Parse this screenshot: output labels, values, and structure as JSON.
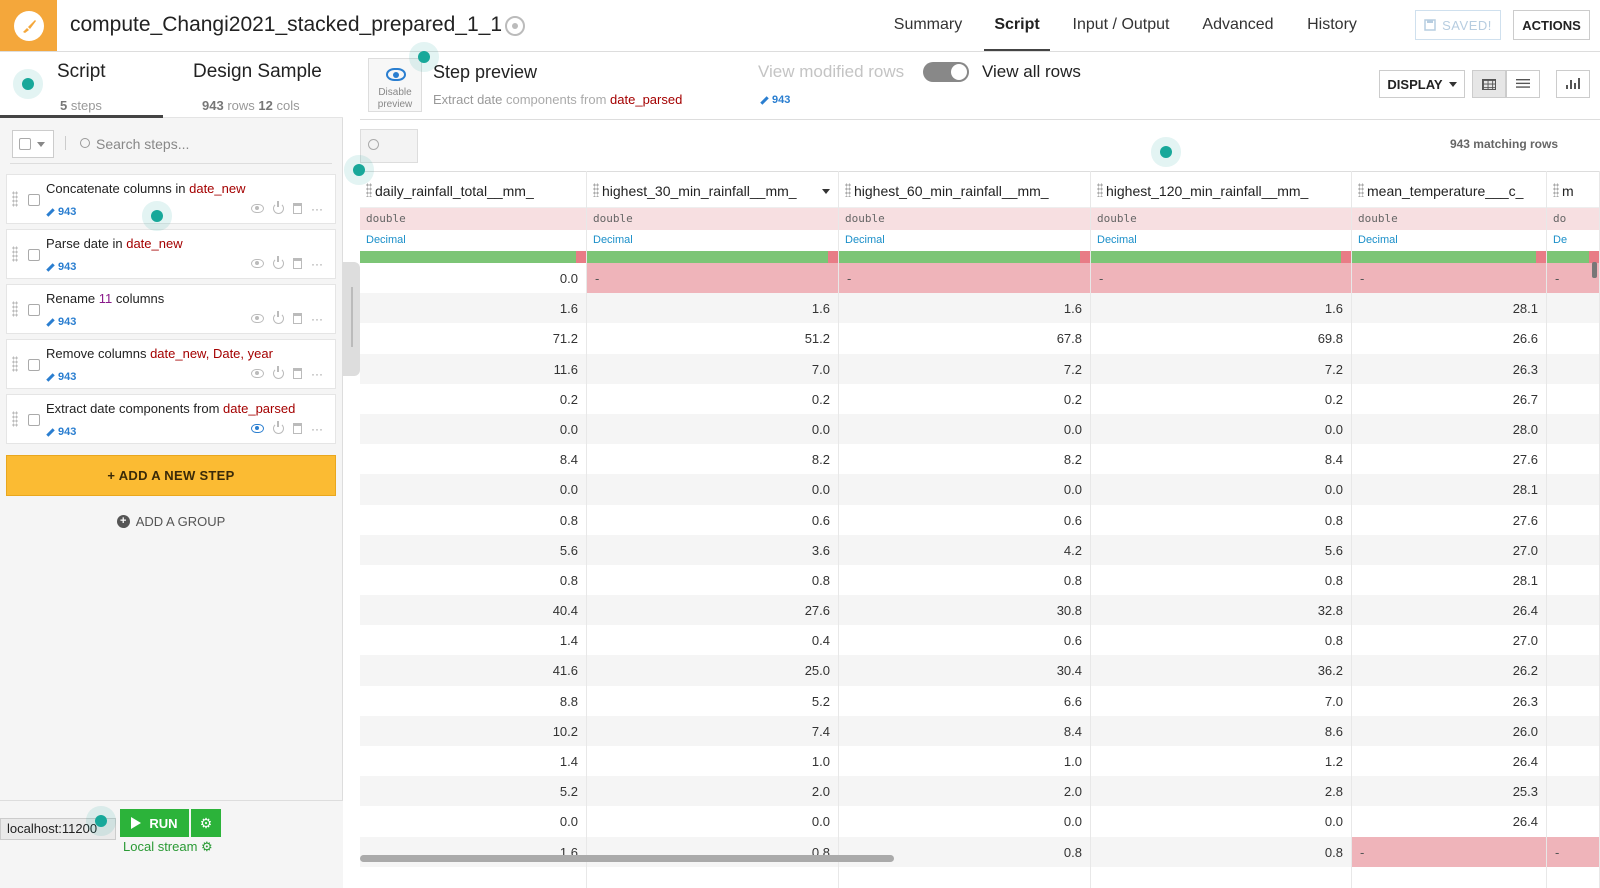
{
  "app": {
    "recipe_name": "compute_Changi2021_stacked_prepared_1_1",
    "nav": [
      "Summary",
      "Script",
      "Input / Output",
      "Advanced",
      "History"
    ],
    "active_nav": "Script",
    "saved_label": "SAVED!",
    "actions_label": "ACTIONS"
  },
  "left_tabs": {
    "script": {
      "title": "Script",
      "steps_num": "5",
      "steps_word": "steps"
    },
    "design": {
      "title": "Design Sample",
      "rows_num": "943",
      "rows_word": "rows",
      "cols_num": "12",
      "cols_word": "cols"
    }
  },
  "step_search": {
    "placeholder": "Search steps..."
  },
  "steps": [
    {
      "verb": "Concatenate",
      "middle": " columns in ",
      "target": "date_new",
      "count": "943"
    },
    {
      "verb": "Parse date",
      "middle": " in ",
      "target": "date_new",
      "count": "943"
    },
    {
      "verb": "Rename",
      "middle": " columns",
      "num": "11",
      "count": "943"
    },
    {
      "verb": "Remove",
      "middle": " columns ",
      "target": "date_new, Date, year",
      "count": "943"
    },
    {
      "verb": "Extract date components",
      "middle": " from ",
      "target": "date_parsed",
      "count": "943"
    }
  ],
  "add_step_label": "+ ADD A NEW STEP",
  "add_group_label": "ADD A GROUP",
  "run": {
    "label": "RUN",
    "engine": "Local stream"
  },
  "status_url": "localhost:11200",
  "preview": {
    "disable_label": "Disable preview",
    "title": "Step preview",
    "sub_prefix": "Extract date",
    "sub_middle": " components from ",
    "sub_target": "date_parsed",
    "view_modified": "View modified rows",
    "view_all": "View all rows",
    "count": "943",
    "display_label": "DISPLAY",
    "matching_rows": "943 matching rows"
  },
  "table": {
    "columns": [
      {
        "name": "daily_rainfall_total__mm_",
        "type": "double",
        "meaning": "Decimal"
      },
      {
        "name": "highest_30_min_rainfall__mm_",
        "type": "double",
        "meaning": "Decimal"
      },
      {
        "name": "highest_60_min_rainfall__mm_",
        "type": "double",
        "meaning": "Decimal"
      },
      {
        "name": "highest_120_min_rainfall__mm_",
        "type": "double",
        "meaning": "Decimal"
      },
      {
        "name": "mean_temperature___c_",
        "type": "double",
        "meaning": "Decimal"
      },
      {
        "name": "m",
        "type": "do",
        "meaning": "De"
      }
    ],
    "rows": [
      [
        "0.0",
        "-",
        "-",
        "-",
        "-",
        "-"
      ],
      [
        "1.6",
        "1.6",
        "1.6",
        "1.6",
        "28.1",
        ""
      ],
      [
        "71.2",
        "51.2",
        "67.8",
        "69.8",
        "26.6",
        ""
      ],
      [
        "11.6",
        "7.0",
        "7.2",
        "7.2",
        "26.3",
        ""
      ],
      [
        "0.2",
        "0.2",
        "0.2",
        "0.2",
        "26.7",
        ""
      ],
      [
        "0.0",
        "0.0",
        "0.0",
        "0.0",
        "28.0",
        ""
      ],
      [
        "8.4",
        "8.2",
        "8.2",
        "8.4",
        "27.6",
        ""
      ],
      [
        "0.0",
        "0.0",
        "0.0",
        "0.0",
        "28.1",
        ""
      ],
      [
        "0.8",
        "0.6",
        "0.6",
        "0.8",
        "27.6",
        ""
      ],
      [
        "5.6",
        "3.6",
        "4.2",
        "5.6",
        "27.0",
        ""
      ],
      [
        "0.8",
        "0.8",
        "0.8",
        "0.8",
        "28.1",
        ""
      ],
      [
        "40.4",
        "27.6",
        "30.8",
        "32.8",
        "26.4",
        ""
      ],
      [
        "1.4",
        "0.4",
        "0.6",
        "0.8",
        "27.0",
        ""
      ],
      [
        "41.6",
        "25.0",
        "30.4",
        "36.2",
        "26.2",
        ""
      ],
      [
        "8.8",
        "5.2",
        "6.6",
        "7.0",
        "26.3",
        ""
      ],
      [
        "10.2",
        "7.4",
        "8.4",
        "8.6",
        "26.0",
        ""
      ],
      [
        "1.4",
        "1.0",
        "1.0",
        "1.2",
        "26.4",
        ""
      ],
      [
        "5.2",
        "2.0",
        "2.0",
        "2.8",
        "25.3",
        ""
      ],
      [
        "0.0",
        "0.0",
        "0.0",
        "0.0",
        "26.4",
        ""
      ],
      [
        "1.6",
        "0.8",
        "0.8",
        "0.8",
        "-",
        "-"
      ]
    ]
  },
  "colors": {
    "accent": "#f4a73b",
    "run_green": "#2cb33a",
    "link_blue": "#2a7ed0",
    "invalid_red": "#efb4ba"
  }
}
